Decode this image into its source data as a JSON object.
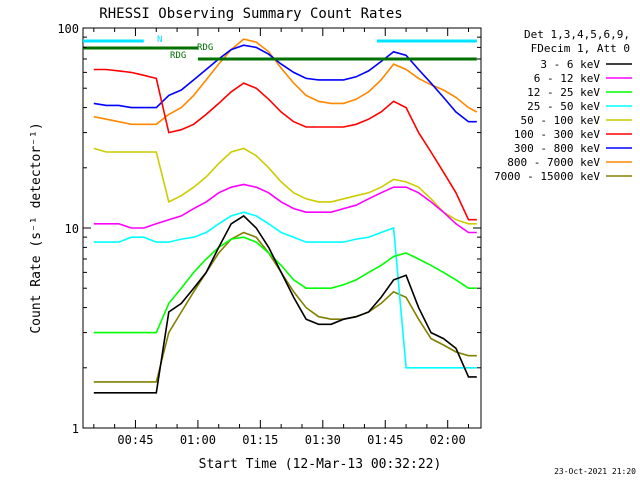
{
  "chart_data": {
    "type": "line",
    "title": "RHESSI Observing Summary Count Rates",
    "xlabel": "Start Time (12-Mar-13 00:32:22)",
    "ylabel": "Count Rate (s⁻¹ detector⁻¹)",
    "ylog": true,
    "ylim": [
      1,
      100
    ],
    "xlim_minutes": [
      32.4,
      128.0
    ],
    "x_ticks": [
      "00:45",
      "01:00",
      "01:15",
      "01:30",
      "01:45",
      "02:00"
    ],
    "x_tick_minutes": [
      45,
      60,
      75,
      90,
      105,
      120
    ],
    "y_tick_labels": [
      "100",
      "10",
      "1"
    ],
    "y_ticks": [
      100,
      10,
      1
    ],
    "legend_header": [
      "Det 1,3,4,5,6,9,",
      "FDecim 1, Att 0"
    ],
    "legend_placement": "right",
    "flag_labels": [
      {
        "text": "N",
        "color": "#00e5ff"
      },
      {
        "text": "RDG",
        "color": "#007000"
      },
      {
        "text": "RDG",
        "color": "#007000"
      }
    ],
    "footer": "23-Oct-2021 21:20",
    "x": [
      35,
      38,
      41,
      44,
      47,
      50,
      53,
      56,
      59,
      62,
      65,
      68,
      71,
      74,
      77,
      80,
      83,
      86,
      89,
      92,
      95,
      98,
      101,
      104,
      107,
      110,
      113,
      116,
      119,
      122,
      125,
      127
    ],
    "series": [
      {
        "name": "3 - 6 keV",
        "color": "#000000",
        "values": [
          1.5,
          1.5,
          1.5,
          1.5,
          1.5,
          1.5,
          3.8,
          4.2,
          5.0,
          6.0,
          8.0,
          10.5,
          11.5,
          10.0,
          8.0,
          6.0,
          4.5,
          3.5,
          3.3,
          3.3,
          3.5,
          3.6,
          3.8,
          4.5,
          5.5,
          5.8,
          4.0,
          3.0,
          2.8,
          2.5,
          1.8,
          1.8
        ]
      },
      {
        "name": "6 - 12 keV",
        "color": "#ff00ff",
        "values": [
          10.5,
          10.5,
          10.5,
          10.0,
          10.0,
          10.5,
          11.0,
          11.5,
          12.5,
          13.5,
          15.0,
          16.0,
          16.5,
          16.0,
          15.0,
          13.5,
          12.5,
          12.0,
          12.0,
          12.0,
          12.5,
          13.0,
          14.0,
          15.0,
          16.0,
          16.0,
          15.0,
          13.5,
          12.0,
          10.5,
          9.5,
          9.5
        ]
      },
      {
        "name": "12 - 25 keV",
        "color": "#00ff00",
        "values": [
          3.0,
          3.0,
          3.0,
          3.0,
          3.0,
          3.0,
          4.2,
          5.0,
          6.0,
          7.0,
          8.0,
          8.8,
          9.0,
          8.5,
          7.5,
          6.5,
          5.5,
          5.0,
          5.0,
          5.0,
          5.2,
          5.5,
          6.0,
          6.5,
          7.2,
          7.5,
          7.0,
          6.5,
          6.0,
          5.5,
          5.0,
          5.0
        ]
      },
      {
        "name": "25 - 50 keV",
        "color": "#00ffff",
        "values": [
          8.5,
          8.5,
          8.5,
          9.0,
          9.0,
          8.5,
          8.5,
          8.8,
          9.0,
          9.5,
          10.5,
          11.5,
          12.0,
          11.5,
          10.5,
          9.5,
          9.0,
          8.5,
          8.5,
          8.5,
          8.5,
          8.8,
          9.0,
          9.5,
          10.0,
          2.0,
          2.0,
          2.0,
          2.0,
          2.0,
          2.0,
          2.0
        ]
      },
      {
        "name": "50 - 100 keV",
        "color": "#cccc00",
        "values": [
          25,
          24,
          24,
          24,
          24,
          24,
          13.5,
          14.5,
          16.0,
          18.0,
          21.0,
          24.0,
          25.0,
          23.0,
          20.0,
          17.0,
          15.0,
          14.0,
          13.5,
          13.5,
          14.0,
          14.5,
          15.0,
          16.0,
          17.5,
          17.0,
          16.0,
          14.0,
          12.0,
          11.0,
          10.5,
          10.5
        ]
      },
      {
        "name": "100 - 300 keV",
        "color": "#ff0000",
        "values": [
          62,
          62,
          61,
          60,
          58,
          56,
          30,
          31,
          33,
          37,
          42,
          48,
          53,
          50,
          44,
          38,
          34,
          32,
          32,
          32,
          32,
          33,
          35,
          38,
          43,
          40,
          30,
          24,
          19,
          15,
          11,
          11
        ]
      },
      {
        "name": "300 - 800 keV",
        "color": "#0000ff",
        "values": [
          42,
          41,
          41,
          40,
          40,
          40,
          46,
          49,
          55,
          62,
          70,
          78,
          82,
          80,
          74,
          66,
          60,
          56,
          55,
          55,
          55,
          57,
          61,
          68,
          76,
          73,
          62,
          53,
          45,
          38,
          34,
          34
        ]
      },
      {
        "name": "800 - 7000 keV",
        "color": "#ff8800",
        "values": [
          36,
          35,
          34,
          33,
          33,
          33,
          37,
          40,
          46,
          55,
          66,
          78,
          88,
          85,
          76,
          63,
          53,
          46,
          43,
          42,
          42,
          44,
          48,
          55,
          66,
          62,
          56,
          52,
          49,
          45,
          40,
          38
        ]
      },
      {
        "name": "7000 - 15000 keV",
        "color": "#808000",
        "values": [
          1.7,
          1.7,
          1.7,
          1.7,
          1.7,
          1.7,
          3.0,
          3.8,
          4.8,
          6.0,
          7.5,
          8.8,
          9.5,
          9.0,
          7.5,
          6.0,
          4.8,
          4.0,
          3.6,
          3.5,
          3.5,
          3.6,
          3.8,
          4.2,
          4.8,
          4.5,
          3.5,
          2.8,
          2.6,
          2.4,
          2.3,
          2.3
        ]
      }
    ],
    "flags": {
      "saa_cyan_bars": [
        [
          32.4,
          47
        ],
        [
          103,
          127
        ]
      ],
      "rdg_green_bars": [
        [
          32.4,
          60
        ],
        [
          60,
          104
        ],
        [
          104,
          127
        ]
      ]
    }
  }
}
